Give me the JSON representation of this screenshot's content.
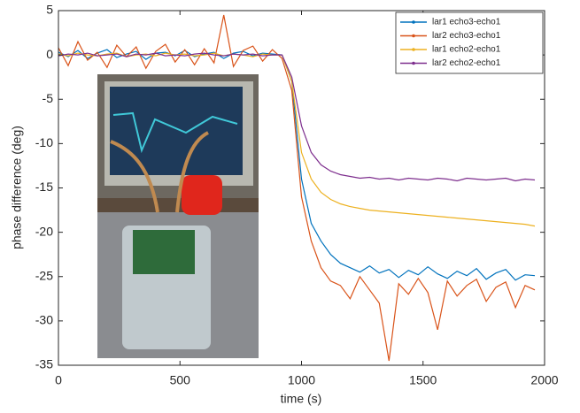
{
  "chart_data": {
    "type": "line",
    "xlabel": "time (s)",
    "ylabel": "phase difference (deg)",
    "x": [
      0,
      40,
      80,
      120,
      160,
      200,
      240,
      280,
      320,
      360,
      400,
      440,
      480,
      520,
      560,
      600,
      640,
      680,
      720,
      760,
      800,
      840,
      880,
      920,
      960,
      1000,
      1040,
      1080,
      1120,
      1160,
      1200,
      1240,
      1280,
      1320,
      1360,
      1400,
      1440,
      1480,
      1520,
      1560,
      1600,
      1640,
      1680,
      1720,
      1760,
      1800,
      1840,
      1880,
      1920,
      1960
    ],
    "series": [
      {
        "name": "lar1 echo3-echo1",
        "color": "#0072bd",
        "values": [
          0.3,
          -0.2,
          0.5,
          -0.4,
          0.2,
          0.6,
          -0.3,
          0.1,
          0.4,
          -0.5,
          0.2,
          0.3,
          -0.1,
          0.5,
          -0.2,
          0.1,
          0.3,
          -0.4,
          0.2,
          0.4,
          -0.1,
          0.2,
          0.1,
          0,
          -3,
          -14,
          -19,
          -21,
          -22.5,
          -23.5,
          -24,
          -24.5,
          -23.8,
          -24.6,
          -24.2,
          -25.1,
          -24.3,
          -24.8,
          -23.9,
          -24.7,
          -25.2,
          -24.4,
          -24.9,
          -24.1,
          -25.3,
          -24.6,
          -24.2,
          -25.4,
          -24.8,
          -24.9
        ]
      },
      {
        "name": "lar2 echo3-echo1",
        "color": "#d95319",
        "values": [
          0.8,
          -1.2,
          1.5,
          -0.6,
          0.3,
          -1.4,
          1.1,
          -0.2,
          0.9,
          -1.5,
          0.4,
          1.2,
          -0.8,
          0.6,
          -1.1,
          0.7,
          -0.9,
          4.5,
          -1.3,
          0.5,
          1.0,
          -0.7,
          0.6,
          -0.4,
          -4,
          -16,
          -21,
          -24,
          -25.5,
          -26,
          -27.5,
          -25,
          -26.5,
          -28,
          -34.5,
          -25.8,
          -27,
          -25.2,
          -26.8,
          -31,
          -25.5,
          -27.2,
          -26,
          -25.3,
          -27.8,
          -26.2,
          -25.6,
          -28.5,
          -26,
          -26.5
        ]
      },
      {
        "name": "lar1 echo2-echo1",
        "color": "#edb120",
        "values": [
          0.1,
          -0.1,
          0.2,
          0,
          -0.1,
          0.1,
          0.2,
          -0.2,
          0,
          0.1,
          -0.1,
          0.2,
          0,
          0.1,
          -0.1,
          0,
          0.2,
          -0.1,
          0.1,
          0,
          -0.2,
          0.1,
          0,
          0,
          -3,
          -11,
          -14,
          -15.5,
          -16.3,
          -16.8,
          -17.1,
          -17.3,
          -17.5,
          -17.6,
          -17.7,
          -17.8,
          -17.9,
          -18.0,
          -18.1,
          -18.2,
          -18.3,
          -18.4,
          -18.5,
          -18.6,
          -18.7,
          -18.8,
          -18.9,
          -19.0,
          -19.1,
          -19.3
        ]
      },
      {
        "name": "lar2 echo2-echo1",
        "color": "#7e2f8e",
        "values": [
          -0.1,
          0.1,
          0,
          0.2,
          -0.1,
          0,
          0.1,
          -0.2,
          0.1,
          0,
          0.2,
          -0.1,
          0,
          -0.1,
          0.1,
          0.2,
          0,
          -0.1,
          0.1,
          0,
          0.1,
          -0.1,
          0,
          0,
          -2.5,
          -8,
          -11,
          -12.4,
          -13.1,
          -13.5,
          -13.7,
          -13.9,
          -13.8,
          -14,
          -13.9,
          -14.1,
          -13.9,
          -14,
          -14.1,
          -13.9,
          -14,
          -14.2,
          -13.9,
          -14,
          -14.1,
          -14,
          -13.9,
          -14.2,
          -14,
          -14.1
        ]
      }
    ],
    "xlim": [
      0,
      2000
    ],
    "xticks": [
      0,
      500,
      1000,
      1500,
      2000
    ],
    "ylim": [
      -35,
      5
    ],
    "yticks": [
      -35,
      -30,
      -25,
      -20,
      -15,
      -10,
      -5,
      0,
      5
    ],
    "legend": "top-right"
  }
}
